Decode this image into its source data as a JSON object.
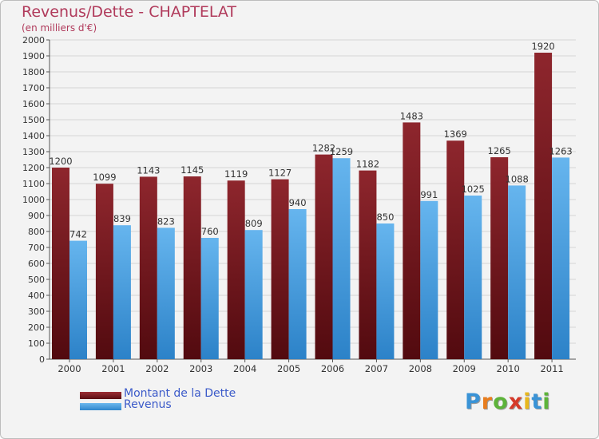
{
  "chart_data": {
    "type": "bar",
    "title": "Revenus/Dette - CHAPTELAT",
    "subtitle": "(en milliers d'€)",
    "xlabel": "",
    "ylabel": "",
    "ylim": [
      0,
      2000
    ],
    "yticks": [
      0,
      100,
      200,
      300,
      400,
      500,
      600,
      700,
      800,
      900,
      1000,
      1100,
      1200,
      1300,
      1400,
      1500,
      1600,
      1700,
      1800,
      1900,
      2000
    ],
    "grid": true,
    "categories": [
      "2000",
      "2001",
      "2002",
      "2003",
      "2004",
      "2005",
      "2006",
      "2007",
      "2008",
      "2009",
      "2010",
      "2011"
    ],
    "series": [
      {
        "name": "Montant de la Dette",
        "color": "#7a1e24",
        "values": [
          1200,
          1099,
          1143,
          1145,
          1119,
          1127,
          1282,
          1182,
          1483,
          1369,
          1265,
          1920
        ]
      },
      {
        "name": "Revenus",
        "color": "#4fa6e6",
        "values": [
          742,
          839,
          823,
          760,
          809,
          940,
          1259,
          850,
          991,
          1025,
          1088,
          1263
        ]
      }
    ],
    "legend_position": "bottom-left"
  },
  "branding": {
    "logo_letters": [
      "P",
      "r",
      "o",
      "x",
      "i",
      "t",
      "i"
    ],
    "logo_colors": [
      "#3a93d6",
      "#e87d1e",
      "#5db33a",
      "#d53a2a",
      "#e8b81e",
      "#3a93d6",
      "#5db33a"
    ]
  }
}
